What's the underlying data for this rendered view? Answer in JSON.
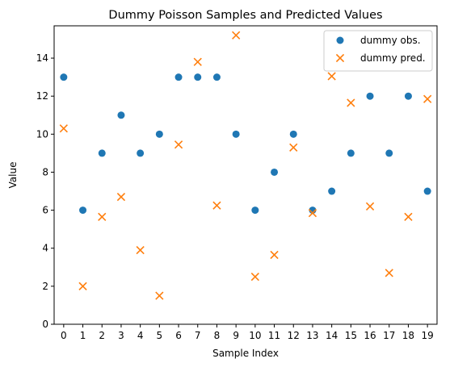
{
  "chart_data": {
    "type": "scatter",
    "title": "Dummy Poisson Samples and Predicted Values",
    "xlabel": "Sample Index",
    "ylabel": "Value",
    "xlim": [
      -0.5,
      19.5
    ],
    "ylim": [
      0,
      15.7
    ],
    "x_ticks": [
      "0",
      "1",
      "2",
      "3",
      "4",
      "5",
      "6",
      "7",
      "8",
      "9",
      "10",
      "11",
      "12",
      "13",
      "14",
      "15",
      "16",
      "17",
      "18",
      "19"
    ],
    "y_ticks": [
      "0",
      "2",
      "4",
      "6",
      "8",
      "10",
      "12",
      "14"
    ],
    "grid": false,
    "legend_position": "top-right",
    "x": [
      0,
      1,
      2,
      3,
      4,
      5,
      6,
      7,
      8,
      9,
      10,
      11,
      12,
      13,
      14,
      15,
      16,
      17,
      18,
      19
    ],
    "series": [
      {
        "name": "dummy obs.",
        "marker": "circle",
        "color": "#1f77b4",
        "values": [
          13,
          6,
          9,
          11,
          9,
          10,
          13,
          13,
          13,
          10,
          6,
          8,
          10,
          6,
          7,
          9,
          12,
          9,
          12,
          7
        ]
      },
      {
        "name": "dummy pred.",
        "marker": "x",
        "color": "#ff7f0e",
        "values": [
          10.3,
          2.0,
          5.65,
          6.7,
          3.9,
          1.5,
          9.45,
          13.8,
          6.25,
          15.2,
          2.5,
          3.65,
          9.3,
          5.85,
          13.05,
          11.65,
          6.2,
          2.7,
          5.65,
          11.85
        ]
      }
    ]
  }
}
